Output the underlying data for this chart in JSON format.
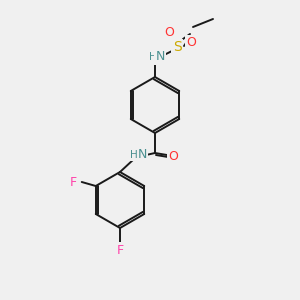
{
  "bg_color": "#f0f0f0",
  "bond_color": "#1a1a1a",
  "atom_colors": {
    "N": "#4a9090",
    "O": "#ff3333",
    "S": "#ccaa00",
    "F": "#ff44aa",
    "C": "#1a1a1a",
    "H": "#4a9090"
  },
  "font_size_atom": 9,
  "font_size_small": 7.5
}
